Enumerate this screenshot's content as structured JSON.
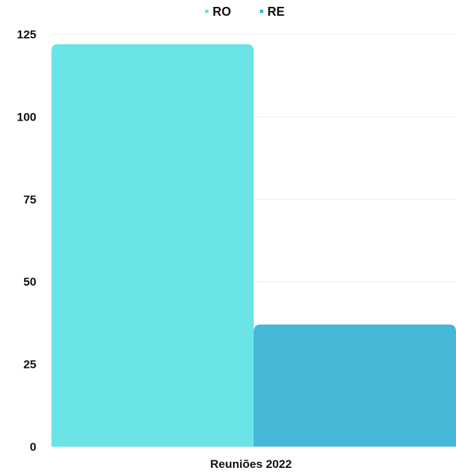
{
  "chart_data": {
    "type": "bar",
    "categories": [
      "Reuniões 2022"
    ],
    "series": [
      {
        "name": "RO",
        "values": [
          122
        ],
        "color": "#6be4e8"
      },
      {
        "name": "RE",
        "values": [
          37
        ],
        "color": "#44b8d6"
      }
    ],
    "title": "",
    "xlabel": "",
    "ylabel": "",
    "ylim": [
      0,
      125
    ],
    "yticks": [
      0,
      25,
      50,
      75,
      100,
      125
    ],
    "grid": true,
    "legend_position": "top-center"
  }
}
